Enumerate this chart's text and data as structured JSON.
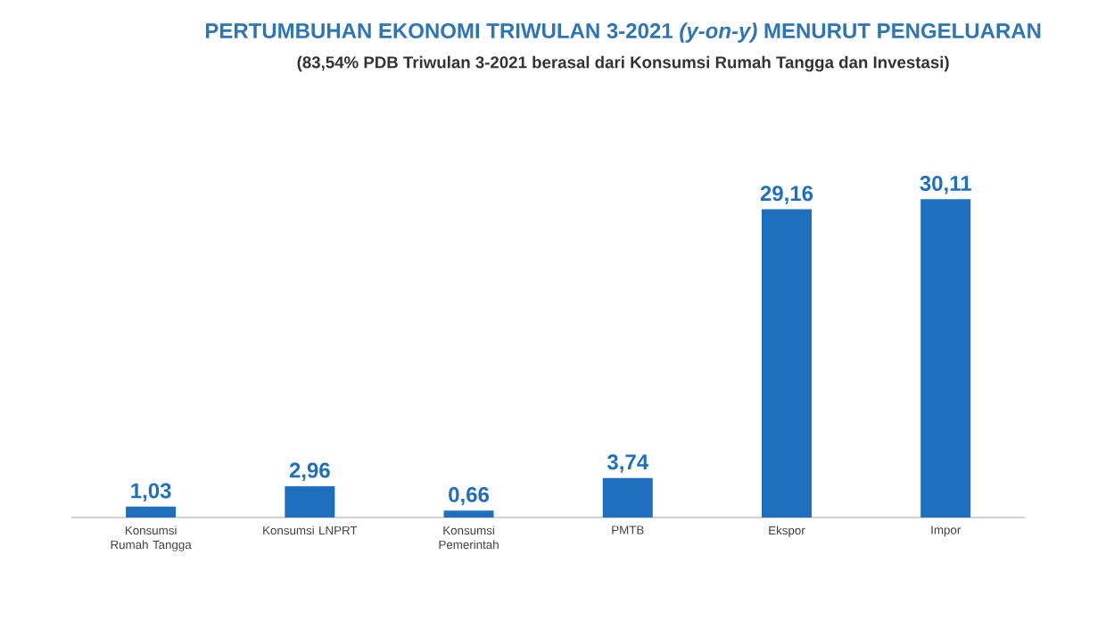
{
  "chart_data": {
    "type": "bar",
    "title": "PERTUMBUHAN EKONOMI TRIWULAN 3-2021 *(y-on-y)* MENURUT PENGELUARAN",
    "subtitle": "(83,54% PDB Triwulan 3-2021 berasal dari Konsumsi Rumah Tangga dan Investasi)",
    "categories": [
      "Konsumsi Rumah Tangga",
      "Konsumsi LNPRT",
      "Konsumsi Pemerintah",
      "PMTB",
      "Ekspor",
      "Impor"
    ],
    "values": [
      1.03,
      2.96,
      0.66,
      3.74,
      29.16,
      30.11
    ],
    "value_labels": [
      "1,03",
      "2,96",
      "0,66",
      "3,74",
      "29,16",
      "30,11"
    ],
    "color": "#1f6fbf"
  }
}
